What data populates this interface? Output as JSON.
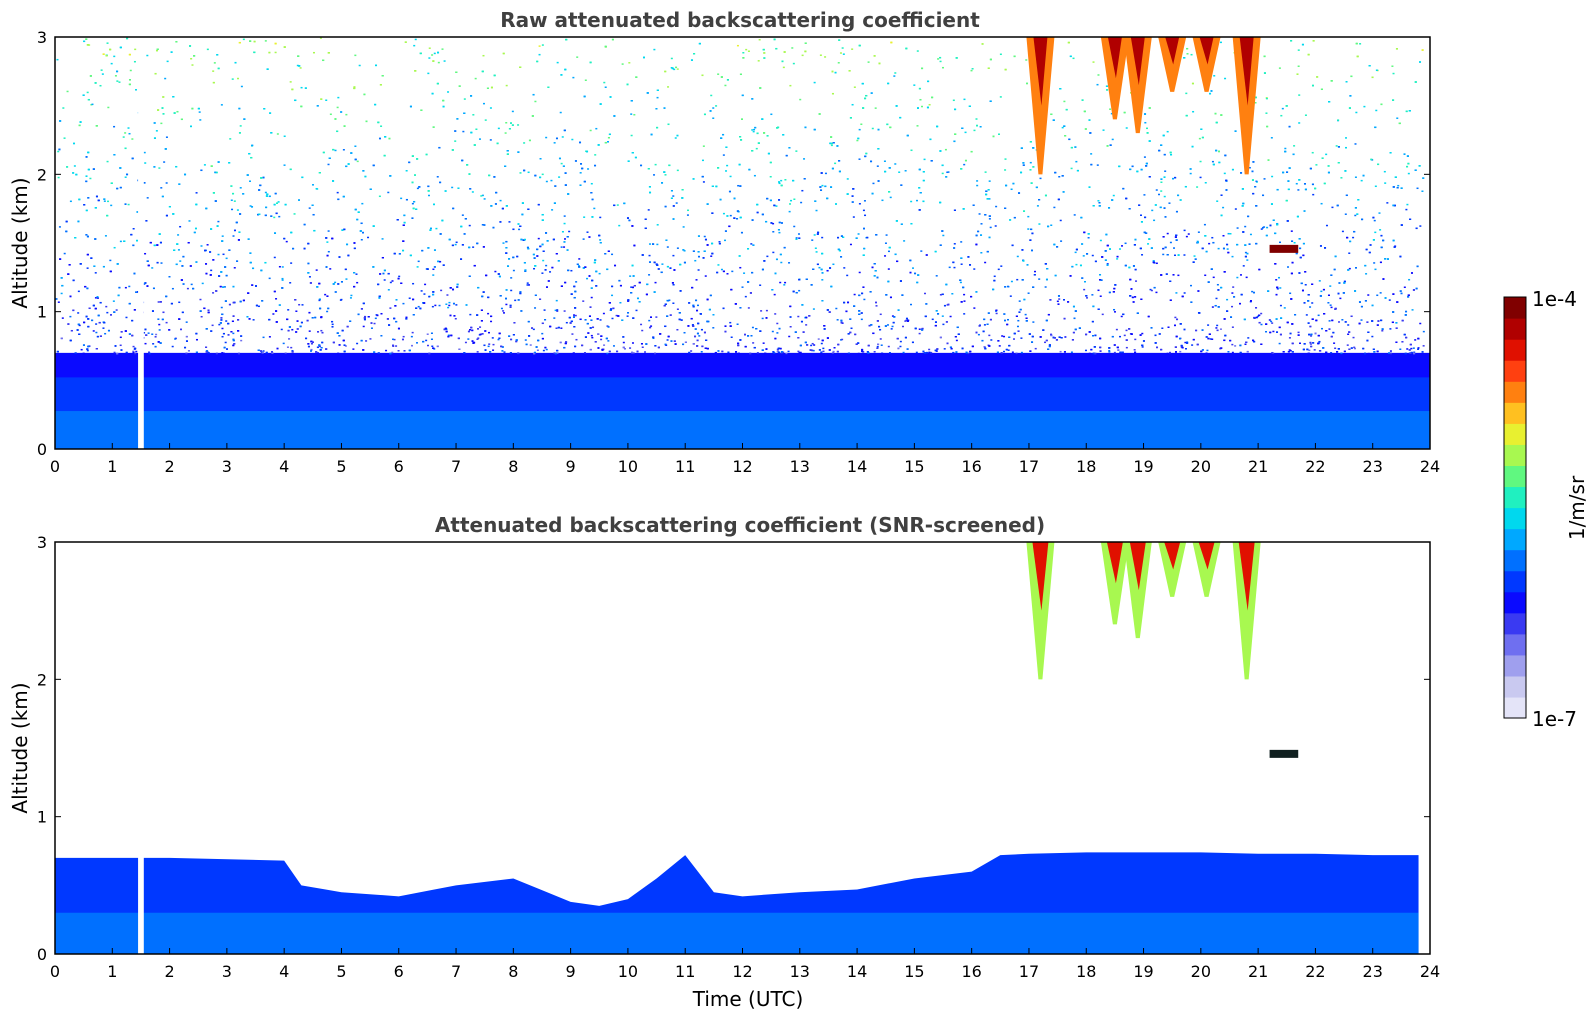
{
  "chart_data": [
    {
      "type": "heatmap",
      "title": "Raw attenuated backscattering coefficient",
      "xlabel": "",
      "ylabel": "Altitude (km)",
      "xlim": [
        0,
        24
      ],
      "ylim": [
        0,
        3
      ],
      "xticks": [
        0,
        1,
        2,
        3,
        4,
        5,
        6,
        7,
        8,
        9,
        10,
        11,
        12,
        13,
        14,
        15,
        16,
        17,
        18,
        19,
        20,
        21,
        22,
        23,
        24
      ],
      "yticks": [
        0,
        1,
        2,
        3
      ],
      "grid": false,
      "features": {
        "boundary_layer_top_km": 0.7,
        "data_gap_hours": [
          1.45,
          1.55
        ],
        "noise_above_boundary_layer": true,
        "cirrus_fall_streaks": [
          {
            "center_h": 17.2,
            "base_km": 2.0
          },
          {
            "center_h": 18.5,
            "base_km": 2.4
          },
          {
            "center_h": 18.9,
            "base_km": 2.3
          },
          {
            "center_h": 19.5,
            "base_km": 2.6
          },
          {
            "center_h": 20.1,
            "base_km": 2.6
          },
          {
            "center_h": 20.8,
            "base_km": 2.0
          }
        ],
        "isolated_layer": {
          "start_h": 21.2,
          "end_h": 21.7,
          "altitude_km": 1.45
        }
      }
    },
    {
      "type": "heatmap",
      "title": "Attenuated backscattering coefficient (SNR-screened)",
      "xlabel": "Time (UTC)",
      "ylabel": "Altitude (km)",
      "xlim": [
        0,
        24
      ],
      "ylim": [
        0,
        3
      ],
      "xticks": [
        0,
        1,
        2,
        3,
        4,
        5,
        6,
        7,
        8,
        9,
        10,
        11,
        12,
        13,
        14,
        15,
        16,
        17,
        18,
        19,
        20,
        21,
        22,
        23,
        24
      ],
      "yticks": [
        0,
        1,
        2,
        3
      ],
      "grid": false,
      "boundary_layer_top_km": {
        "time_h": [
          0,
          2,
          4,
          4.3,
          5,
          6,
          7,
          8,
          9,
          9.5,
          10,
          10.5,
          11,
          11.5,
          12,
          13,
          14,
          15,
          16,
          16.5,
          17,
          18,
          19,
          20,
          21,
          22,
          23,
          23.8
        ],
        "top_km": [
          0.7,
          0.7,
          0.68,
          0.5,
          0.45,
          0.42,
          0.5,
          0.55,
          0.38,
          0.35,
          0.4,
          0.55,
          0.72,
          0.45,
          0.42,
          0.45,
          0.47,
          0.55,
          0.6,
          0.72,
          0.73,
          0.74,
          0.74,
          0.74,
          0.73,
          0.73,
          0.72,
          0.72
        ]
      }
    }
  ],
  "colorbar": {
    "label": "1/m/sr",
    "max_label": "1e-4",
    "min_label": "1e-7",
    "colors": [
      "#e4e4f8",
      "#c9c9f0",
      "#9f9fee",
      "#6f6ff0",
      "#3a3af2",
      "#0a0aff",
      "#0038ff",
      "#0070ff",
      "#00a8ff",
      "#00d8ee",
      "#20f0c0",
      "#60f880",
      "#a8f850",
      "#e8f030",
      "#ffc020",
      "#ff8010",
      "#ff4010",
      "#e01000",
      "#b00000",
      "#800000"
    ]
  },
  "xaxis_label": "Time (UTC)"
}
